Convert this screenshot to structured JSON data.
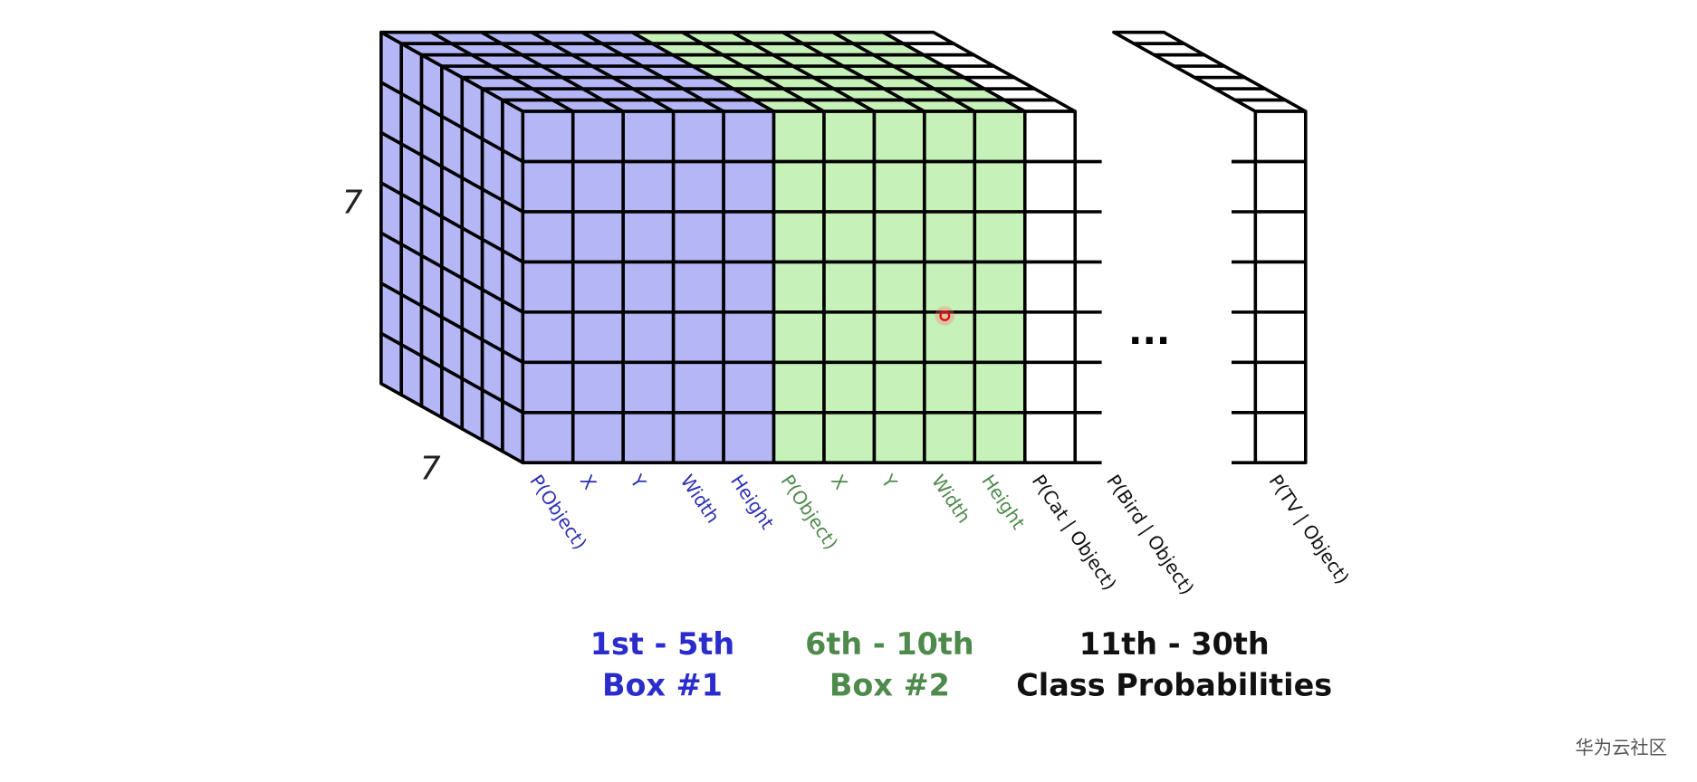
{
  "axis_labels": {
    "height": "7",
    "depth": "7"
  },
  "columns": [
    "P(Object)",
    "X",
    "Y",
    "Width",
    "Height",
    "P(Object)",
    "X",
    "Y",
    "Width",
    "Height",
    "P(Cat | Object)",
    "P(Bird | Object)",
    "P(TV | Object)"
  ],
  "ellipsis": "...",
  "groups": [
    {
      "range": "1st - 5th",
      "name": "Box #1"
    },
    {
      "range": "6th - 10th",
      "name": "Box #2"
    },
    {
      "range": "11th - 30th",
      "name": "Class Probabilities"
    }
  ],
  "watermark": "华为云社区"
}
